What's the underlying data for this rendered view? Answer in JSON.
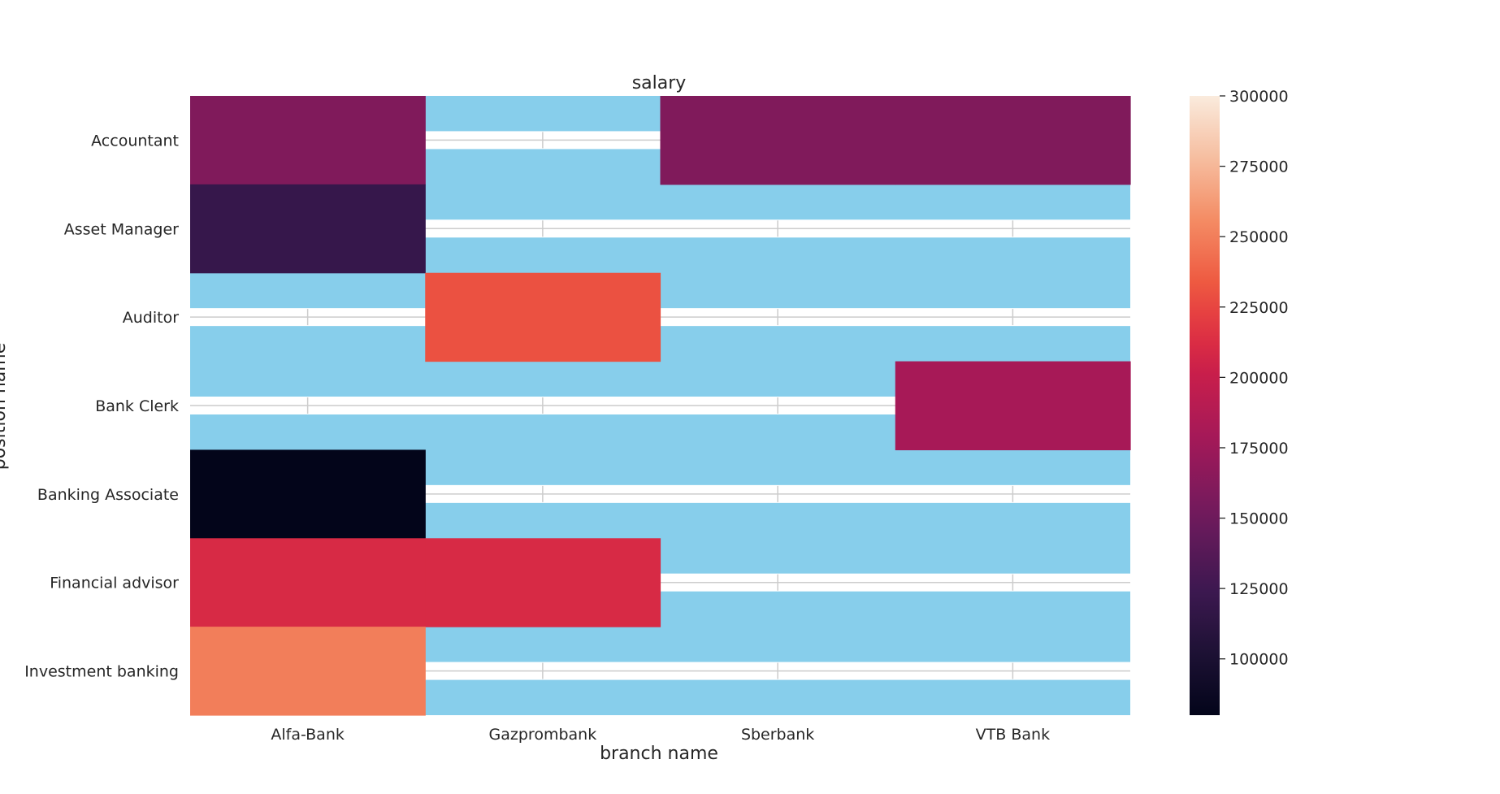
{
  "chart_data": {
    "type": "heatmap",
    "title": "salary",
    "xlabel": "branch name",
    "ylabel": "position name",
    "x_categories": [
      "Alfa-Bank",
      "Gazprombank",
      "Sberbank",
      "VTB Bank"
    ],
    "y_categories": [
      "Accountant",
      "Asset Manager",
      "Auditor",
      "Bank Clerk",
      "Banking Associate",
      "Financial advisor",
      "Investment banking"
    ],
    "values": [
      [
        160000,
        null,
        160000,
        160000
      ],
      [
        120000,
        null,
        null,
        null
      ],
      [
        null,
        230000,
        null,
        null
      ],
      [
        null,
        null,
        null,
        180000
      ],
      [
        80000,
        null,
        null,
        null
      ],
      [
        210000,
        210000,
        null,
        null
      ],
      [
        250000,
        null,
        null,
        null
      ]
    ],
    "missing_color": "#87ceeb",
    "colorbar": {
      "min": 80000,
      "max": 300000,
      "ticks": [
        100000,
        125000,
        150000,
        175000,
        200000,
        225000,
        250000,
        275000,
        300000
      ],
      "tick_labels": [
        "100000",
        "125000",
        "150000",
        "175000",
        "200000",
        "225000",
        "250000",
        "275000",
        "300000"
      ],
      "colormap": "rocket"
    },
    "grid": true,
    "legend": "colorbar-right"
  }
}
